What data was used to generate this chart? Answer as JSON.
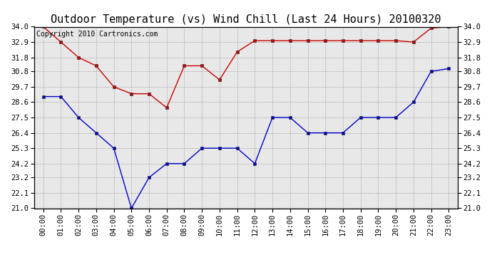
{
  "title": "Outdoor Temperature (vs) Wind Chill (Last 24 Hours) 20100320",
  "copyright_text": "Copyright 2010 Cartronics.com",
  "x_labels": [
    "00:00",
    "01:00",
    "02:00",
    "03:00",
    "04:00",
    "05:00",
    "06:00",
    "07:00",
    "08:00",
    "09:00",
    "10:00",
    "11:00",
    "12:00",
    "13:00",
    "14:00",
    "15:00",
    "16:00",
    "17:00",
    "18:00",
    "19:00",
    "20:00",
    "21:00",
    "22:00",
    "23:00"
  ],
  "temp_data": [
    34.0,
    32.9,
    31.8,
    31.2,
    29.7,
    29.2,
    29.2,
    28.2,
    31.2,
    31.2,
    30.2,
    32.2,
    33.0,
    33.0,
    33.0,
    33.0,
    33.0,
    33.0,
    33.0,
    33.0,
    33.0,
    32.9,
    33.9,
    34.0
  ],
  "wind_chill_data": [
    29.0,
    29.0,
    27.5,
    26.4,
    25.3,
    21.0,
    23.2,
    24.2,
    24.2,
    25.3,
    25.3,
    25.3,
    24.2,
    27.5,
    27.5,
    26.4,
    26.4,
    26.4,
    27.5,
    27.5,
    27.5,
    28.6,
    30.8,
    31.0
  ],
  "temp_color": "#cc0000",
  "wind_color": "#0000cc",
  "bg_color": "#ffffff",
  "plot_bg": "#e8e8e8",
  "grid_color": "#aaaaaa",
  "ylim_min": 21.0,
  "ylim_max": 34.0,
  "yticks": [
    21.0,
    22.1,
    23.2,
    24.2,
    25.3,
    26.4,
    27.5,
    28.6,
    29.7,
    30.8,
    31.8,
    32.9,
    34.0
  ],
  "title_fontsize": 11,
  "copyright_fontsize": 7,
  "tick_fontsize": 7.5
}
